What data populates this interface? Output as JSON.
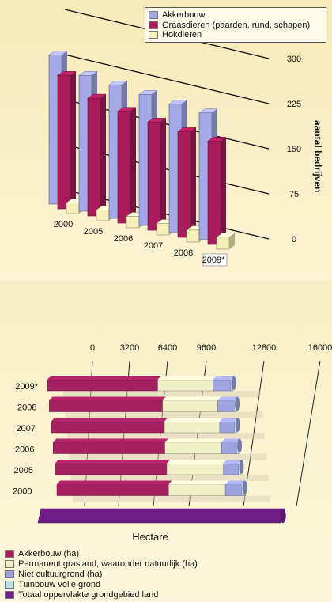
{
  "chart_data": [
    {
      "type": "bar",
      "categories": [
        "2000",
        "2005",
        "2006",
        "2007",
        "2008",
        "2009*"
      ],
      "series": [
        {
          "name": "Akkerbouw",
          "values": [
            248,
            226,
            222,
            218,
            214,
            211
          ]
        },
        {
          "name": "Graasdieren (paarden, rund, schapen)",
          "values": [
            222,
            196,
            186,
            180,
            176,
            172
          ]
        },
        {
          "name": "Hokdieren",
          "values": [
            18,
            18,
            19,
            19,
            20,
            20
          ]
        }
      ],
      "ylabel": "aantal bedrijven",
      "yticks": [
        "0",
        "75",
        "150",
        "225",
        "300"
      ],
      "ylim": [
        0,
        300
      ],
      "colors": [
        "#a3a8e6",
        "#a81c5c",
        "#f6f0b8"
      ],
      "legend": "top-right"
    },
    {
      "type": "bar",
      "orientation": "horizontal",
      "stacked": true,
      "categories": [
        "2009*",
        "2008",
        "2007",
        "2006",
        "2005",
        "2000"
      ],
      "series": [
        {
          "name": "Akkerbouw (ha)",
          "values": [
            7400,
            7600,
            7600,
            7500,
            7500,
            7500
          ]
        },
        {
          "name": "Permanent grasland, waaronder natuurlijk (ha)",
          "values": [
            3700,
            3700,
            3700,
            3800,
            3800,
            3800
          ]
        },
        {
          "name": "Niet cultuurgrond (ha)",
          "values": [
            1200,
            1100,
            1000,
            1000,
            1000,
            1100
          ]
        },
        {
          "name": "Tuinbouw volle grond",
          "values": [
            150,
            150,
            150,
            150,
            150,
            150
          ]
        }
      ],
      "total": {
        "name": "Totaal oppervlakte grondgebied land",
        "value": 15300
      },
      "xlabel": "Hectare",
      "xticks": [
        "0",
        "3200",
        "6400",
        "9600",
        "12800",
        "16000"
      ],
      "xlim": [
        0,
        16000
      ],
      "colors": [
        "#a42060",
        "#f0f0c8",
        "#9fa4e0",
        "#b8e4ec",
        "#6e1e86"
      ],
      "legend": "bottom-left"
    }
  ]
}
